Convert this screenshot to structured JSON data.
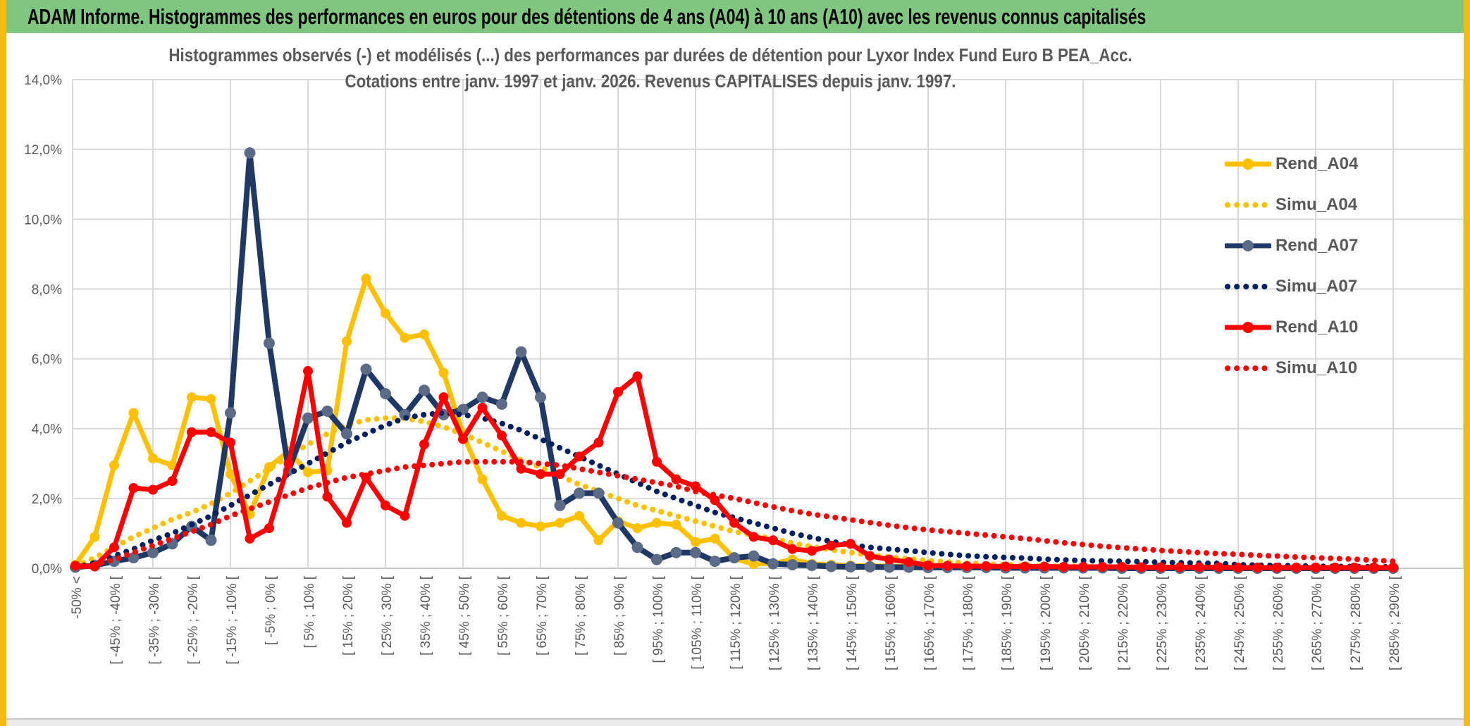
{
  "page": {
    "header_title": "ADAM Informe. Histogrammes des performances en euros pour des détentions de 4 ans (A04) à 10 ans (A10) avec les revenus connus capitalisés",
    "colors": {
      "header_bg": "#80C580",
      "edge": "#F3BB16",
      "text_gray": "#595959",
      "grid": "#D9D9D9",
      "gold": "#FFC000",
      "navy": "#1F3864",
      "red": "#FF0000"
    }
  },
  "chart_data": {
    "type": "line",
    "title_line1": "Histogrammes observés (-) et modélisés (...) des performances par durées de détention pour Lyxor Index Fund Euro B PEA_Acc.",
    "title_line2": "Cotations entre janv. 1997 et janv. 2026. Revenus CAPITALISES depuis janv. 1997.",
    "ylabel": "",
    "xlabel": "",
    "ylim": [
      0,
      14
    ],
    "grid": true,
    "legend_position": "right",
    "y_ticks": [
      "0,0%",
      "2,0%",
      "4,0%",
      "6,0%",
      "8,0%",
      "10,0%",
      "12,0%",
      "14,0%"
    ],
    "categories": [
      "-50% <",
      "",
      "[ -45% ; -40% [",
      "",
      "[ -35% ; -30% [",
      "",
      "[ -25% ; -20% [",
      "",
      "[ -15% ; -10% [",
      "",
      "[ -5% ; 0% [",
      "",
      "[ 5% ; 10% [",
      "",
      "[ 15% ; 20% [",
      "",
      "[ 25% ; 30% [",
      "",
      "[ 35% ; 40% [",
      "",
      "[ 45% ; 50% [",
      "",
      "[ 55% ; 60% [",
      "",
      "[ 65% ; 70% [",
      "",
      "[ 75% ; 80% [",
      "",
      "[ 85% ; 90% [",
      "",
      "[ 95% ; 100% [",
      "",
      "[ 105% ; 110% [",
      "",
      "[ 115% ; 120% [",
      "",
      "[ 125% ; 130% [",
      "",
      "[ 135% ; 140% [",
      "",
      "[ 145% ; 150% [",
      "",
      "[ 155% ; 160% [",
      "",
      "[ 165% ; 170% [",
      "",
      "[ 175% ; 180% [",
      "",
      "[ 185% ; 190% [",
      "",
      "[ 195% ; 200% [",
      "",
      "[ 205% ; 210% [",
      "",
      "[ 215% ; 220% [",
      "",
      "[ 225% ; 230% [",
      "",
      "[ 235% ; 240% [",
      "",
      "[ 245% ; 250% [",
      "",
      "[ 255% ; 260% [",
      "",
      "[ 265% ; 270% [",
      "",
      "[ 275% ; 280% [",
      "",
      "[ 285% ; 290% ["
    ],
    "series": [
      {
        "name": "Rend_A04",
        "color": "#FFC000",
        "style": "solid",
        "marker_color": "#FFC000",
        "values": [
          0.1,
          0.9,
          2.95,
          4.45,
          3.15,
          2.95,
          4.9,
          4.85,
          2.7,
          1.55,
          2.9,
          3.35,
          2.75,
          2.8,
          6.5,
          8.3,
          7.3,
          6.6,
          6.7,
          5.6,
          3.85,
          2.55,
          1.5,
          1.3,
          1.2,
          1.3,
          1.5,
          0.8,
          1.35,
          1.15,
          1.3,
          1.25,
          0.75,
          0.85,
          0.28,
          0.12,
          0.14,
          0.25,
          0.13,
          0.1,
          0.08,
          0.07,
          0.06,
          0.05,
          0.05,
          0.04,
          0.04,
          0.03,
          0.03,
          0.02,
          0.02,
          0.02,
          0.02,
          0.01,
          0.01,
          0.01,
          0.01,
          0.01,
          0.01,
          0.01,
          0,
          0,
          0,
          0,
          0,
          0,
          0,
          0,
          0
        ]
      },
      {
        "name": "Simu_A04",
        "color": "#FFC000",
        "style": "dotted",
        "values": [
          0.05,
          0.3,
          0.6,
          0.9,
          1.15,
          1.4,
          1.6,
          1.85,
          2.15,
          2.5,
          2.85,
          3.2,
          3.55,
          3.85,
          4.1,
          4.25,
          4.3,
          4.3,
          4.2,
          4.05,
          3.85,
          3.6,
          3.35,
          3.1,
          2.9,
          2.65,
          2.4,
          2.2,
          2.0,
          1.8,
          1.65,
          1.5,
          1.35,
          1.2,
          1.05,
          0.95,
          0.85,
          0.72,
          0.62,
          0.53,
          0.45,
          0.38,
          0.32,
          0.27,
          0.22,
          0.18,
          0.15,
          0.12,
          0.1,
          0.08,
          0.07,
          0.06,
          0.05,
          0.04,
          0.04,
          0.03,
          0.03,
          0.02,
          0.02,
          0.02,
          0.01,
          0.01,
          0.01,
          0.01,
          0.01,
          0.01,
          0,
          0,
          0
        ]
      },
      {
        "name": "Rend_A07",
        "color": "#1F3864",
        "style": "solid",
        "marker_color": "#5B6B87",
        "values": [
          0.03,
          0.08,
          0.2,
          0.3,
          0.45,
          0.7,
          1.2,
          0.8,
          4.45,
          11.9,
          6.45,
          2.8,
          4.3,
          4.5,
          3.85,
          5.7,
          5.0,
          4.4,
          5.1,
          4.4,
          4.55,
          4.9,
          4.7,
          6.2,
          4.9,
          1.8,
          2.15,
          2.15,
          1.3,
          0.6,
          0.25,
          0.45,
          0.45,
          0.2,
          0.3,
          0.35,
          0.13,
          0.1,
          0.08,
          0.05,
          0.04,
          0.04,
          0.03,
          0.03,
          0.02,
          0.02,
          0.02,
          0.02,
          0.01,
          0.01,
          0.01,
          0.01,
          0.01,
          0.01,
          0,
          0,
          0,
          0,
          0,
          0,
          0,
          0,
          0,
          0,
          0,
          0,
          0,
          0,
          0
        ]
      },
      {
        "name": "Simu_A07",
        "color": "#002060",
        "style": "dotted",
        "values": [
          0.03,
          0.15,
          0.35,
          0.55,
          0.8,
          1.0,
          1.25,
          1.5,
          1.8,
          2.1,
          2.4,
          2.7,
          3.0,
          3.3,
          3.6,
          3.85,
          4.1,
          4.3,
          4.4,
          4.45,
          4.4,
          4.3,
          4.15,
          3.95,
          3.7,
          3.45,
          3.2,
          2.95,
          2.7,
          2.45,
          2.2,
          2.0,
          1.8,
          1.6,
          1.45,
          1.3,
          1.15,
          1.0,
          0.88,
          0.77,
          0.67,
          0.6,
          0.55,
          0.5,
          0.45,
          0.4,
          0.36,
          0.33,
          0.31,
          0.29,
          0.26,
          0.24,
          0.22,
          0.21,
          0.2,
          0.19,
          0.17,
          0.16,
          0.15,
          0.14,
          0.1,
          0.09,
          0.08,
          0.07,
          0.06,
          0.05,
          0.05,
          0.04,
          0.04
        ]
      },
      {
        "name": "Rend_A10",
        "color": "#FF0000",
        "style": "solid",
        "marker_color": "#FF0000",
        "values": [
          0.07,
          0.05,
          0.6,
          2.3,
          2.25,
          2.5,
          3.9,
          3.9,
          3.6,
          0.85,
          1.15,
          3.0,
          5.65,
          2.05,
          1.3,
          2.6,
          1.8,
          1.5,
          3.55,
          4.9,
          3.7,
          4.6,
          3.8,
          2.85,
          2.7,
          2.7,
          3.2,
          3.6,
          5.05,
          5.5,
          3.05,
          2.55,
          2.35,
          1.95,
          1.3,
          0.9,
          0.8,
          0.55,
          0.5,
          0.65,
          0.7,
          0.35,
          0.25,
          0.18,
          0.08,
          0.07,
          0.06,
          0.06,
          0.05,
          0.05,
          0.05,
          0.04,
          0.04,
          0.04,
          0.04,
          0.03,
          0.03,
          0.03,
          0.03,
          0.03,
          0.02,
          0.02,
          0.02,
          0.02,
          0.02,
          0.02,
          0.02,
          0.02,
          0.02
        ]
      },
      {
        "name": "Simu_A10",
        "color": "#FF0000",
        "style": "dotted",
        "values": [
          0.02,
          0.1,
          0.25,
          0.45,
          0.65,
          0.85,
          1.05,
          1.25,
          1.5,
          1.7,
          1.9,
          2.1,
          2.3,
          2.45,
          2.6,
          2.7,
          2.8,
          2.9,
          2.95,
          3.0,
          3.05,
          3.05,
          3.05,
          3.05,
          3.0,
          2.95,
          2.85,
          2.75,
          2.65,
          2.55,
          2.45,
          2.35,
          2.2,
          2.1,
          2.0,
          1.88,
          1.76,
          1.65,
          1.55,
          1.47,
          1.39,
          1.31,
          1.23,
          1.16,
          1.1,
          1.05,
          1.0,
          0.95,
          0.9,
          0.85,
          0.79,
          0.73,
          0.68,
          0.63,
          0.59,
          0.55,
          0.51,
          0.48,
          0.45,
          0.42,
          0.4,
          0.37,
          0.35,
          0.32,
          0.3,
          0.28,
          0.26,
          0.23,
          0.2
        ]
      }
    ]
  }
}
